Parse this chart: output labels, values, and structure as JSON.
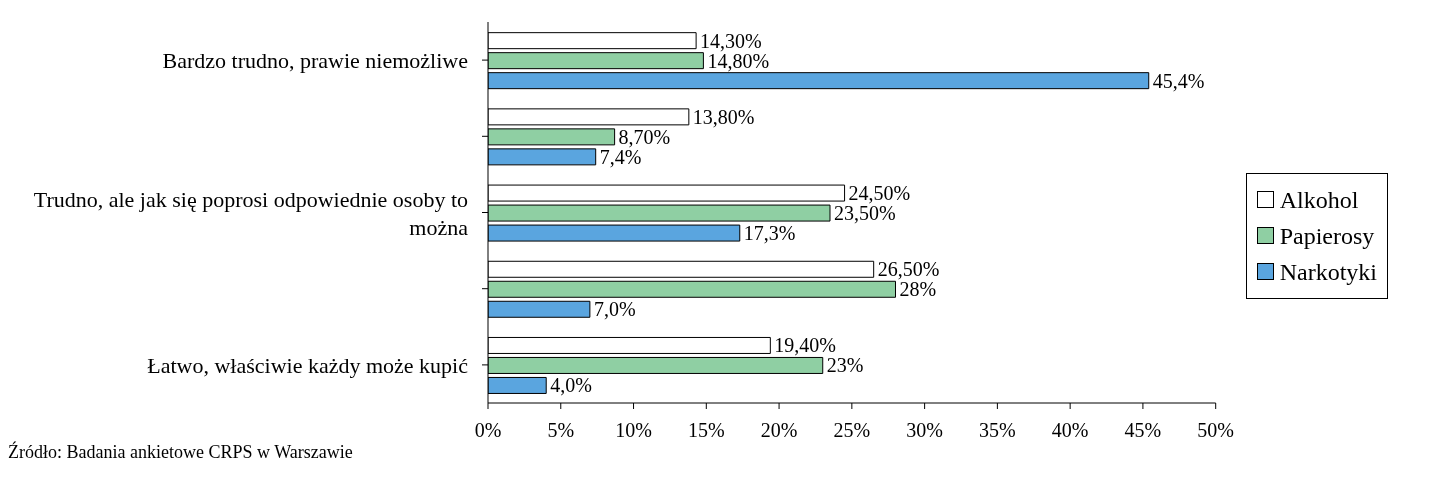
{
  "chart_data": {
    "type": "bar",
    "orientation": "horizontal",
    "categories": [
      "Bardzo trudno, prawie niemożliwe",
      null,
      "Trudno, ale jak się poprosi odpowiednie osoby to można",
      null,
      "Łatwo, właściwie każdy może kupić"
    ],
    "series": [
      {
        "name": "Alkohol",
        "color": "#ffffff",
        "values": [
          14.3,
          13.8,
          24.5,
          26.5,
          19.4
        ],
        "value_labels": [
          "14,30%",
          "13,80%",
          "24,50%",
          "26,50%",
          "19,40%"
        ]
      },
      {
        "name": "Papierosy",
        "color": "#8fcfa3",
        "values": [
          14.8,
          8.7,
          23.5,
          28,
          23
        ],
        "value_labels": [
          "14,80%",
          "8,70%",
          "23,50%",
          "28%",
          "23%"
        ]
      },
      {
        "name": "Narkotyki",
        "color": "#5aa5df",
        "values": [
          45.4,
          7.4,
          17.3,
          7.0,
          4.0
        ],
        "value_labels": [
          "45,4%",
          "7,4%",
          "17,3%",
          "7,0%",
          "4,0%"
        ]
      }
    ],
    "xlim": [
      0,
      50
    ],
    "xticks": [
      {
        "value": 0,
        "label": "0%"
      },
      {
        "value": 5,
        "label": "5%"
      },
      {
        "value": 10,
        "label": "10%"
      },
      {
        "value": 15,
        "label": "15%"
      },
      {
        "value": 20,
        "label": "20%"
      },
      {
        "value": 25,
        "label": "25%"
      },
      {
        "value": 30,
        "label": "30%"
      },
      {
        "value": 35,
        "label": "35%"
      },
      {
        "value": 40,
        "label": "40%"
      },
      {
        "value": 45,
        "label": "45%"
      },
      {
        "value": 50,
        "label": "50%"
      }
    ],
    "grid": false,
    "legend": "right",
    "annotations": [
      "Źródło: Badania ankietowe CRPS w Warszawie"
    ]
  }
}
